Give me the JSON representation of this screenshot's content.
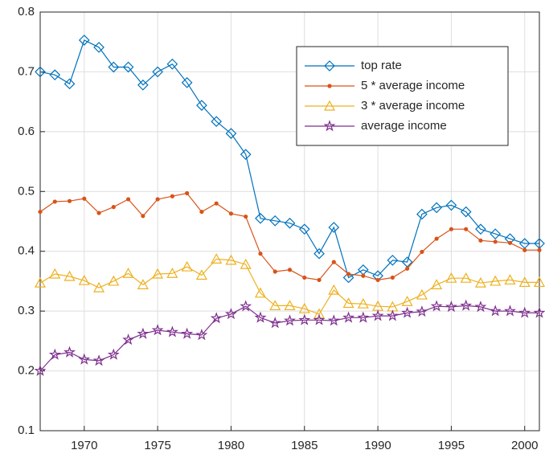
{
  "chart_data": {
    "type": "line",
    "x": [
      1967,
      1968,
      1969,
      1970,
      1971,
      1972,
      1973,
      1974,
      1975,
      1976,
      1977,
      1978,
      1979,
      1980,
      1981,
      1982,
      1983,
      1984,
      1985,
      1986,
      1987,
      1988,
      1989,
      1990,
      1991,
      1992,
      1993,
      1994,
      1995,
      1996,
      1997,
      1998,
      1999,
      2000,
      2001
    ],
    "series": [
      {
        "name": "top rate",
        "color": "#0072BD",
        "marker": "diamond",
        "values": [
          0.7,
          0.695,
          0.68,
          0.753,
          0.741,
          0.708,
          0.708,
          0.678,
          0.7,
          0.713,
          0.682,
          0.644,
          0.617,
          0.597,
          0.562,
          0.455,
          0.451,
          0.447,
          0.437,
          0.396,
          0.44,
          0.356,
          0.369,
          0.359,
          0.385,
          0.382,
          0.462,
          0.473,
          0.477,
          0.466,
          0.437,
          0.429,
          0.421,
          0.413,
          0.413
        ]
      },
      {
        "name": "5 * average income",
        "color": "#D95319",
        "marker": "dot",
        "values": [
          0.466,
          0.483,
          0.484,
          0.488,
          0.464,
          0.474,
          0.487,
          0.459,
          0.487,
          0.492,
          0.497,
          0.466,
          0.48,
          0.463,
          0.458,
          0.396,
          0.366,
          0.369,
          0.356,
          0.352,
          0.382,
          0.362,
          0.359,
          0.352,
          0.356,
          0.371,
          0.399,
          0.421,
          0.437,
          0.437,
          0.418,
          0.416,
          0.414,
          0.402,
          0.402
        ]
      },
      {
        "name": "3 * average income",
        "color": "#EDB120",
        "marker": "triangle",
        "values": [
          0.347,
          0.362,
          0.358,
          0.351,
          0.339,
          0.35,
          0.363,
          0.344,
          0.362,
          0.363,
          0.374,
          0.36,
          0.387,
          0.385,
          0.378,
          0.33,
          0.309,
          0.309,
          0.304,
          0.295,
          0.335,
          0.313,
          0.312,
          0.308,
          0.307,
          0.316,
          0.327,
          0.344,
          0.355,
          0.355,
          0.347,
          0.35,
          0.352,
          0.348,
          0.348
        ]
      },
      {
        "name": "average income",
        "color": "#7E2F8E",
        "marker": "star",
        "values": [
          0.2,
          0.227,
          0.231,
          0.219,
          0.217,
          0.227,
          0.252,
          0.262,
          0.268,
          0.265,
          0.262,
          0.26,
          0.288,
          0.295,
          0.308,
          0.289,
          0.28,
          0.284,
          0.285,
          0.285,
          0.284,
          0.289,
          0.289,
          0.292,
          0.292,
          0.297,
          0.299,
          0.308,
          0.307,
          0.309,
          0.307,
          0.3,
          0.3,
          0.297,
          0.297
        ]
      }
    ],
    "xlim": [
      1967,
      2001
    ],
    "xticks": [
      1970,
      1975,
      1980,
      1985,
      1990,
      1995,
      2000
    ],
    "ylim": [
      0.1,
      0.8
    ],
    "yticks": [
      0.1,
      0.2,
      0.3,
      0.4,
      0.5,
      0.6,
      0.7,
      0.8
    ],
    "grid": true,
    "legend": "top-right"
  }
}
